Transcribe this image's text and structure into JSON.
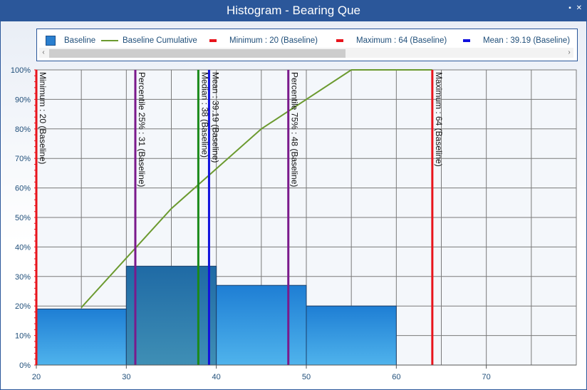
{
  "window": {
    "title": "Histogram - Bearing Que",
    "buttons": [
      "▪",
      "✕"
    ]
  },
  "legend": {
    "items": [
      {
        "label": "Baseline",
        "kind": "box",
        "color": "#2a7fcf"
      },
      {
        "label": "Baseline Cumulative",
        "kind": "line",
        "color": "#6b9a2f"
      },
      {
        "label": "Minimum : 20 (Baseline)",
        "kind": "dash",
        "color": "#e8141c"
      },
      {
        "label": "Maximum : 64 (Baseline)",
        "kind": "dash",
        "color": "#e8141c"
      },
      {
        "label": "Mean : 39.19 (Baseline)",
        "kind": "dash",
        "color": "#1111dd"
      }
    ],
    "scroll_left": "‹",
    "scroll_right": "›"
  },
  "chart_data": {
    "type": "bar",
    "title": "Histogram - Bearing Que",
    "xlim": [
      20,
      80
    ],
    "ylim": [
      0,
      100
    ],
    "x_ticks": [
      20,
      30,
      40,
      50,
      60,
      70
    ],
    "y_ticks": [
      0,
      10,
      20,
      30,
      40,
      50,
      60,
      70,
      80,
      90,
      100
    ],
    "y_tick_labels": [
      "0%",
      "10%",
      "20%",
      "30%",
      "40%",
      "50%",
      "60%",
      "70%",
      "80%",
      "90%",
      "100%"
    ],
    "grid": true,
    "series": [
      {
        "name": "Baseline",
        "type": "histogram",
        "bins": [
          {
            "from": 20,
            "to": 30,
            "value": 19
          },
          {
            "from": 30,
            "to": 40,
            "value": 33.5,
            "highlight": true
          },
          {
            "from": 40,
            "to": 50,
            "value": 27
          },
          {
            "from": 50,
            "to": 60,
            "value": 20
          }
        ]
      },
      {
        "name": "Baseline Cumulative",
        "type": "line",
        "x": [
          25,
          35,
          45,
          55,
          64
        ],
        "y": [
          19.5,
          53,
          80,
          100,
          100
        ]
      }
    ],
    "reference_lines": [
      {
        "x": 20,
        "label": "Minimum : 20 (Baseline)",
        "color": "#e8141c"
      },
      {
        "x": 31,
        "label": "Percentile 25% : 31 (Baseline)",
        "color": "#7a1a8c"
      },
      {
        "x": 38,
        "label": "Median : 38 (Baseline)",
        "color": "#1a8a1a"
      },
      {
        "x": 39.19,
        "label": "Mean : 39.19 (Baseline)",
        "color": "#1111dd"
      },
      {
        "x": 48,
        "label": "Percentile 75% : 48 (Baseline)",
        "color": "#7a1a8c"
      },
      {
        "x": 64,
        "label": "Maximum : 64 (Baseline)",
        "color": "#e8141c"
      }
    ]
  }
}
